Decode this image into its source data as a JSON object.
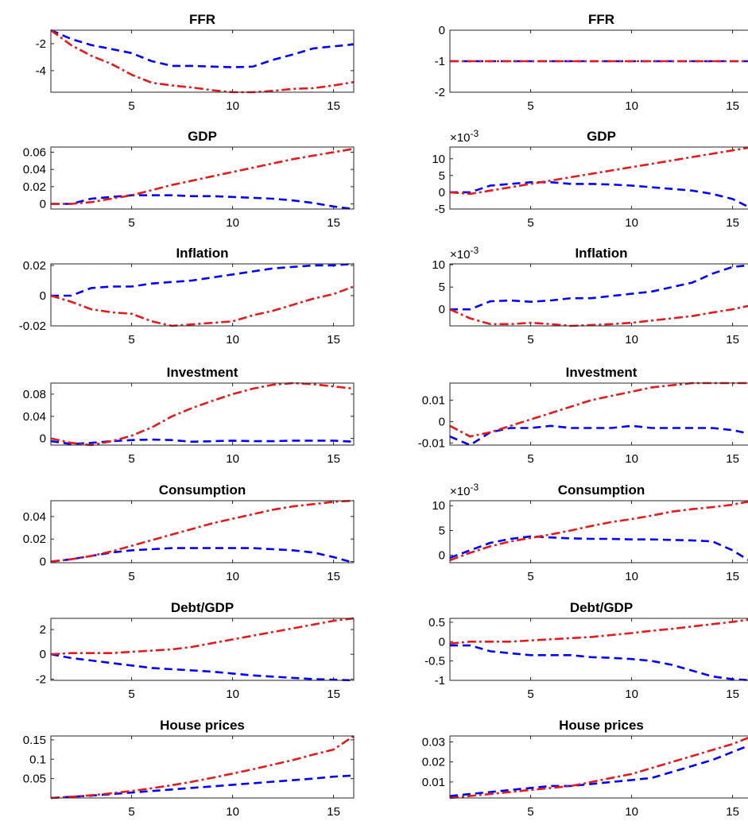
{
  "chart_data": [
    {
      "type": "line",
      "title": "FFR",
      "x": [
        1,
        2,
        3,
        4,
        5,
        6,
        7,
        8,
        9,
        10,
        11,
        12,
        13,
        14,
        15,
        16
      ],
      "xlim": [
        1,
        16
      ],
      "xticks": [
        5,
        10,
        15
      ],
      "ylim": [
        -5.6,
        -1.0
      ],
      "yticks": [
        -2,
        -4
      ],
      "ytick_labels": [
        "-2",
        "-4"
      ],
      "exponent": "",
      "series": [
        {
          "style": "dashed",
          "color": "#0000ff",
          "values": [
            -1.0,
            -1.65,
            -2.1,
            -2.4,
            -2.7,
            -3.3,
            -3.65,
            -3.65,
            -3.7,
            -3.75,
            -3.7,
            -3.2,
            -2.8,
            -2.35,
            -2.2,
            -2.05
          ]
        },
        {
          "style": "dashdot",
          "color": "#e41a1c",
          "values": [
            -1.0,
            -2.1,
            -2.9,
            -3.5,
            -4.3,
            -4.9,
            -5.1,
            -5.25,
            -5.45,
            -5.6,
            -5.6,
            -5.5,
            -5.35,
            -5.3,
            -5.1,
            -4.85
          ]
        }
      ]
    },
    {
      "type": "line",
      "title": "FFR",
      "x": [
        1,
        2,
        3,
        4,
        5,
        6,
        7,
        8,
        9,
        10,
        11,
        12,
        13,
        14,
        15,
        16
      ],
      "xlim": [
        1,
        16
      ],
      "xticks": [
        5,
        10,
        15
      ],
      "ylim": [
        -2,
        0
      ],
      "yticks": [
        0,
        -1,
        -2
      ],
      "ytick_labels": [
        "0",
        "-1",
        "-2"
      ],
      "exponent": "",
      "series": [
        {
          "style": "dashed",
          "color": "#0000ff",
          "values": [
            -1,
            -1,
            -1,
            -1,
            -1,
            -1,
            -1,
            -1,
            -1,
            -1,
            -1,
            -1,
            -1,
            -1,
            -1,
            -1
          ]
        },
        {
          "style": "dashdot",
          "color": "#e41a1c",
          "values": [
            -1,
            -1,
            -1,
            -1,
            -1,
            -1,
            -1,
            -1,
            -1,
            -1,
            -1,
            -1,
            -1,
            -1,
            -1,
            -1
          ]
        }
      ]
    },
    {
      "type": "line",
      "title": "GDP",
      "x": [
        1,
        2,
        3,
        4,
        5,
        6,
        7,
        8,
        9,
        10,
        11,
        12,
        13,
        14,
        15,
        16
      ],
      "xlim": [
        1,
        16
      ],
      "xticks": [
        5,
        10,
        15
      ],
      "ylim": [
        -0.006,
        0.066
      ],
      "yticks": [
        0.06,
        0.04,
        0.02,
        0
      ],
      "ytick_labels": [
        "0.06",
        "0.04",
        "0.02",
        "0"
      ],
      "exponent": "",
      "series": [
        {
          "style": "dashed",
          "color": "#0000ff",
          "values": [
            0,
            0,
            0.006,
            0.008,
            0.01,
            0.01,
            0.01,
            0.009,
            0.009,
            0.008,
            0.007,
            0.006,
            0.004,
            0.001,
            -0.003,
            -0.006
          ]
        },
        {
          "style": "dashdot",
          "color": "#e41a1c",
          "values": [
            0,
            0,
            0.002,
            0.006,
            0.01,
            0.016,
            0.022,
            0.027,
            0.032,
            0.037,
            0.042,
            0.047,
            0.052,
            0.056,
            0.06,
            0.064
          ]
        }
      ]
    },
    {
      "type": "line",
      "title": "GDP",
      "x": [
        1,
        2,
        3,
        4,
        5,
        6,
        7,
        8,
        9,
        10,
        11,
        12,
        13,
        14,
        15,
        16
      ],
      "xlim": [
        1,
        16
      ],
      "xticks": [
        5,
        10,
        15
      ],
      "ylim": [
        -5,
        13.5
      ],
      "yticks": [
        10,
        5,
        0,
        -5
      ],
      "ytick_labels": [
        "10",
        "5",
        "0",
        "-5"
      ],
      "exponent": "-3",
      "series": [
        {
          "style": "dashed",
          "color": "#0000ff",
          "values": [
            0,
            0,
            2,
            2.5,
            3,
            3,
            2.5,
            2.5,
            2.3,
            2,
            1.5,
            1,
            0.5,
            -0.5,
            -2,
            -5
          ]
        },
        {
          "style": "dashdot",
          "color": "#e41a1c",
          "values": [
            0,
            -0.5,
            0.5,
            1.5,
            2.5,
            3.5,
            4.5,
            5.5,
            6.5,
            7.5,
            8.5,
            9.5,
            10.5,
            11.5,
            12.5,
            13.5
          ]
        }
      ]
    },
    {
      "type": "line",
      "title": "Inflation",
      "x": [
        1,
        2,
        3,
        4,
        5,
        6,
        7,
        8,
        9,
        10,
        11,
        12,
        13,
        14,
        15,
        16
      ],
      "xlim": [
        1,
        16
      ],
      "xticks": [
        5,
        10,
        15
      ],
      "ylim": [
        -0.02,
        0.021
      ],
      "yticks": [
        0.02,
        0,
        -0.02
      ],
      "ytick_labels": [
        "0.02",
        "0",
        "-0.02"
      ],
      "exponent": "",
      "series": [
        {
          "style": "dashed",
          "color": "#0000ff",
          "values": [
            0,
            0,
            0.005,
            0.006,
            0.006,
            0.008,
            0.009,
            0.01,
            0.012,
            0.014,
            0.016,
            0.018,
            0.019,
            0.02,
            0.02,
            0.021
          ]
        },
        {
          "style": "dashdot",
          "color": "#e41a1c",
          "values": [
            0,
            -0.004,
            -0.009,
            -0.011,
            -0.012,
            -0.017,
            -0.02,
            -0.019,
            -0.018,
            -0.017,
            -0.013,
            -0.01,
            -0.006,
            -0.002,
            0.001,
            0.006
          ]
        }
      ]
    },
    {
      "type": "line",
      "title": "Inflation",
      "x": [
        1,
        2,
        3,
        4,
        5,
        6,
        7,
        8,
        9,
        10,
        11,
        12,
        13,
        14,
        15,
        16
      ],
      "xlim": [
        1,
        16
      ],
      "xticks": [
        5,
        10,
        15
      ],
      "ylim": [
        -3.7,
        10.2
      ],
      "yticks": [
        10,
        5,
        0
      ],
      "ytick_labels": [
        "10",
        "5",
        "0"
      ],
      "exponent": "-3",
      "series": [
        {
          "style": "dashed",
          "color": "#0000ff",
          "values": [
            0,
            0,
            1.8,
            2,
            1.7,
            2,
            2.5,
            2.5,
            3,
            3.5,
            4,
            5,
            6,
            8,
            9.5,
            10
          ]
        },
        {
          "style": "dashdot",
          "color": "#e41a1c",
          "values": [
            0,
            -2,
            -3.3,
            -3.3,
            -3,
            -3.3,
            -3.7,
            -3.5,
            -3.3,
            -3,
            -2.5,
            -2,
            -1.5,
            -0.7,
            0,
            1
          ]
        }
      ]
    },
    {
      "type": "line",
      "title": "Investment",
      "x": [
        1,
        2,
        3,
        4,
        5,
        6,
        7,
        8,
        9,
        10,
        11,
        12,
        13,
        14,
        15,
        16
      ],
      "xlim": [
        1,
        16
      ],
      "xticks": [
        5,
        10,
        15
      ],
      "ylim": [
        -0.012,
        0.1
      ],
      "yticks": [
        0.08,
        0.04,
        0
      ],
      "ytick_labels": [
        "0.08",
        "0.04",
        "0"
      ],
      "exponent": "",
      "series": [
        {
          "style": "dashed",
          "color": "#0000ff",
          "values": [
            -0.005,
            -0.01,
            -0.008,
            -0.005,
            -0.003,
            -0.002,
            -0.003,
            -0.006,
            -0.005,
            -0.004,
            -0.005,
            -0.005,
            -0.004,
            -0.004,
            -0.004,
            -0.006
          ]
        },
        {
          "style": "dashdot",
          "color": "#e41a1c",
          "values": [
            0,
            -0.008,
            -0.012,
            -0.005,
            0.005,
            0.02,
            0.04,
            0.055,
            0.068,
            0.08,
            0.09,
            0.097,
            0.1,
            0.098,
            0.094,
            0.09
          ]
        }
      ]
    },
    {
      "type": "line",
      "title": "Investment",
      "x": [
        1,
        2,
        3,
        4,
        5,
        6,
        7,
        8,
        9,
        10,
        11,
        12,
        13,
        14,
        15,
        16
      ],
      "xlim": [
        1,
        16
      ],
      "xticks": [
        5,
        10,
        15
      ],
      "ylim": [
        -0.011,
        0.018
      ],
      "yticks": [
        0.01,
        0,
        -0.01
      ],
      "ytick_labels": [
        "0.01",
        "0",
        "-0.01"
      ],
      "exponent": "",
      "series": [
        {
          "style": "dashed",
          "color": "#0000ff",
          "values": [
            -0.007,
            -0.011,
            -0.005,
            -0.003,
            -0.003,
            -0.002,
            -0.003,
            -0.003,
            -0.003,
            -0.002,
            -0.003,
            -0.003,
            -0.003,
            -0.003,
            -0.004,
            -0.006
          ]
        },
        {
          "style": "dashdot",
          "color": "#e41a1c",
          "values": [
            -0.002,
            -0.007,
            -0.005,
            -0.002,
            0.001,
            0.004,
            0.007,
            0.01,
            0.012,
            0.014,
            0.016,
            0.017,
            0.018,
            0.018,
            0.018,
            0.018
          ]
        }
      ]
    },
    {
      "type": "line",
      "title": "Consumption",
      "x": [
        1,
        2,
        3,
        4,
        5,
        6,
        7,
        8,
        9,
        10,
        11,
        12,
        13,
        14,
        15,
        16
      ],
      "xlim": [
        1,
        16
      ],
      "xticks": [
        5,
        10,
        15
      ],
      "ylim": [
        -0.001,
        0.054
      ],
      "yticks": [
        0.04,
        0.02,
        0
      ],
      "ytick_labels": [
        "0.04",
        "0.02",
        "0"
      ],
      "exponent": "",
      "series": [
        {
          "style": "dashed",
          "color": "#0000ff",
          "values": [
            0,
            0.002,
            0.005,
            0.008,
            0.01,
            0.011,
            0.012,
            0.012,
            0.012,
            0.012,
            0.012,
            0.011,
            0.01,
            0.008,
            0.004,
            -0.001
          ]
        },
        {
          "style": "dashdot",
          "color": "#e41a1c",
          "values": [
            0,
            0.002,
            0.005,
            0.009,
            0.014,
            0.019,
            0.024,
            0.029,
            0.034,
            0.038,
            0.042,
            0.046,
            0.049,
            0.051,
            0.053,
            0.054
          ]
        }
      ]
    },
    {
      "type": "line",
      "title": "Consumption",
      "x": [
        1,
        2,
        3,
        4,
        5,
        6,
        7,
        8,
        9,
        10,
        11,
        12,
        13,
        14,
        15,
        16
      ],
      "xlim": [
        1,
        16
      ],
      "xticks": [
        5,
        10,
        15
      ],
      "ylim": [
        -1.5,
        11
      ],
      "yticks": [
        10,
        5,
        0
      ],
      "ytick_labels": [
        "10",
        "5",
        "0"
      ],
      "exponent": "-3",
      "series": [
        {
          "style": "dashed",
          "color": "#0000ff",
          "values": [
            -0.5,
            1,
            2.5,
            3.3,
            3.8,
            3.6,
            3.4,
            3.3,
            3.3,
            3.2,
            3.2,
            3.1,
            3,
            2.8,
            1,
            -1.5
          ]
        },
        {
          "style": "dashdot",
          "color": "#e41a1c",
          "values": [
            -1,
            0.5,
            1.8,
            2.8,
            3.5,
            4.2,
            5,
            5.9,
            6.7,
            7.3,
            8,
            8.8,
            9.3,
            9.7,
            10.2,
            11
          ]
        }
      ]
    },
    {
      "type": "line",
      "title": "Debt/GDP",
      "x": [
        1,
        2,
        3,
        4,
        5,
        6,
        7,
        8,
        9,
        10,
        11,
        12,
        13,
        14,
        15,
        16
      ],
      "xlim": [
        1,
        16
      ],
      "xticks": [
        5,
        10,
        15
      ],
      "ylim": [
        -2.1,
        2.9
      ],
      "yticks": [
        2,
        0,
        -2
      ],
      "ytick_labels": [
        "2",
        "0",
        "-2"
      ],
      "exponent": "",
      "series": [
        {
          "style": "dashed",
          "color": "#0000ff",
          "values": [
            0,
            -0.3,
            -0.5,
            -0.7,
            -0.9,
            -1.1,
            -1.2,
            -1.3,
            -1.4,
            -1.55,
            -1.7,
            -1.8,
            -1.9,
            -2,
            -2.05,
            -2.1
          ]
        },
        {
          "style": "dashdot",
          "color": "#e41a1c",
          "values": [
            0,
            0.1,
            0.1,
            0.1,
            0.2,
            0.3,
            0.4,
            0.6,
            0.9,
            1.2,
            1.5,
            1.8,
            2.1,
            2.4,
            2.7,
            2.9
          ]
        }
      ]
    },
    {
      "type": "line",
      "title": "Debt/GDP",
      "x": [
        1,
        2,
        3,
        4,
        5,
        6,
        7,
        8,
        9,
        10,
        11,
        12,
        13,
        14,
        15,
        16
      ],
      "xlim": [
        1,
        16
      ],
      "xticks": [
        5,
        10,
        15
      ],
      "ylim": [
        -1.0,
        0.6
      ],
      "yticks": [
        0.5,
        0,
        -0.5,
        -1
      ],
      "ytick_labels": [
        "0.5",
        "0",
        "-0.5",
        "-1"
      ],
      "exponent": "",
      "series": [
        {
          "style": "dashed",
          "color": "#0000ff",
          "values": [
            -0.1,
            -0.1,
            -0.25,
            -0.3,
            -0.35,
            -0.35,
            -0.35,
            -0.4,
            -0.42,
            -0.45,
            -0.5,
            -0.6,
            -0.75,
            -0.9,
            -0.97,
            -1.0
          ]
        },
        {
          "style": "dashdot",
          "color": "#e41a1c",
          "values": [
            -0.05,
            0,
            0,
            0,
            0.03,
            0.06,
            0.09,
            0.12,
            0.17,
            0.22,
            0.28,
            0.33,
            0.39,
            0.45,
            0.51,
            0.58
          ]
        }
      ]
    },
    {
      "type": "line",
      "title": "House prices",
      "x": [
        1,
        2,
        3,
        4,
        5,
        6,
        7,
        8,
        9,
        10,
        11,
        12,
        13,
        14,
        15,
        16
      ],
      "xlim": [
        1,
        16
      ],
      "xticks": [
        5,
        10,
        15
      ],
      "ylim": [
        0,
        0.16
      ],
      "yticks": [
        0.15,
        0.1,
        0.05
      ],
      "ytick_labels": [
        "0.15",
        "0.1",
        "0.05"
      ],
      "exponent": "",
      "series": [
        {
          "style": "dashed",
          "color": "#0000ff",
          "values": [
            0,
            0.003,
            0.006,
            0.01,
            0.014,
            0.018,
            0.022,
            0.026,
            0.03,
            0.034,
            0.038,
            0.042,
            0.046,
            0.05,
            0.055,
            0.058
          ]
        },
        {
          "style": "dashdot",
          "color": "#e41a1c",
          "values": [
            0,
            0.003,
            0.007,
            0.012,
            0.018,
            0.025,
            0.033,
            0.042,
            0.052,
            0.063,
            0.074,
            0.086,
            0.098,
            0.112,
            0.125,
            0.16
          ]
        }
      ]
    },
    {
      "type": "line",
      "title": "House prices",
      "x": [
        1,
        2,
        3,
        4,
        5,
        6,
        7,
        8,
        9,
        10,
        11,
        12,
        13,
        14,
        15,
        16
      ],
      "xlim": [
        1,
        16
      ],
      "xticks": [
        5,
        10,
        15
      ],
      "ylim": [
        0.002,
        0.033
      ],
      "yticks": [
        0.03,
        0.02,
        0.01
      ],
      "ytick_labels": [
        "0.03",
        "0.02",
        "0.01"
      ],
      "exponent": "",
      "series": [
        {
          "style": "dashed",
          "color": "#0000ff",
          "values": [
            0.003,
            0.004,
            0.005,
            0.006,
            0.007,
            0.008,
            0.008,
            0.009,
            0.01,
            0.011,
            0.012,
            0.015,
            0.018,
            0.021,
            0.025,
            0.029
          ]
        },
        {
          "style": "dashdot",
          "color": "#e41a1c",
          "values": [
            0.002,
            0.003,
            0.004,
            0.005,
            0.006,
            0.007,
            0.008,
            0.01,
            0.012,
            0.014,
            0.017,
            0.02,
            0.023,
            0.026,
            0.029,
            0.033
          ]
        }
      ]
    }
  ]
}
